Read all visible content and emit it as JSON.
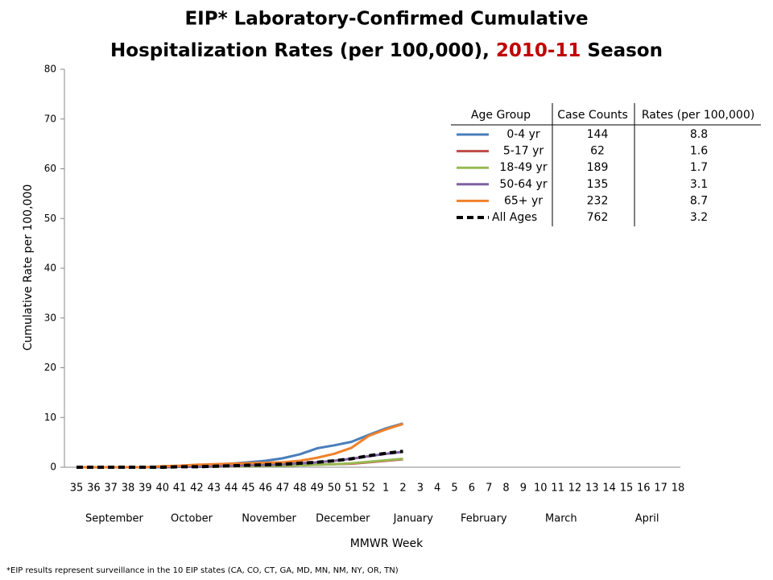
{
  "chart_data": {
    "type": "line",
    "title": {
      "line1": "EIP* Laboratory-Confirmed Cumulative",
      "line2_before": "Hospitalization Rates (per 100,000),",
      "season": "2010-11",
      "line2_after": "Season"
    },
    "season_color": "#c00000",
    "x_label": "MMWR Week",
    "y_label": "Cumulative Rate per 100,000",
    "footnote": "*EIP results represent surveillance in the 10 EIP states (CA, CO, CT, GA, MD, MN, NM, NY, OR, TN)",
    "categories": [
      "35",
      "36",
      "37",
      "38",
      "39",
      "40",
      "41",
      "42",
      "43",
      "44",
      "45",
      "46",
      "47",
      "48",
      "49",
      "50",
      "51",
      "52",
      "1",
      "2",
      "3",
      "4",
      "5",
      "6",
      "7",
      "8",
      "9",
      "10",
      "11",
      "12",
      "13",
      "14",
      "15",
      "16",
      "17",
      "18"
    ],
    "months": [
      "September",
      "October",
      "November",
      "December",
      "January",
      "February",
      "March",
      "April"
    ],
    "ylim": [
      0,
      80
    ],
    "yticks": [
      0,
      10,
      20,
      30,
      40,
      50,
      60,
      70,
      80
    ],
    "table_headers": [
      "Age Group",
      "Case Counts",
      "Rates (per 100,000)"
    ],
    "series": [
      {
        "name": "0-4 yr",
        "color": "#4a7ebb",
        "dashed": false,
        "case_count": 144,
        "rate": 8.8,
        "values": [
          0,
          0,
          0,
          0,
          0,
          0.1,
          0.2,
          0.4,
          0.5,
          0.7,
          1.0,
          1.3,
          1.8,
          2.6,
          3.8,
          4.4,
          5.1,
          6.5,
          7.8,
          8.8,
          null,
          null,
          null,
          null,
          null,
          null,
          null,
          null,
          null,
          null,
          null,
          null,
          null,
          null,
          null,
          null
        ]
      },
      {
        "name": "5-17 yr",
        "color": "#be4b48",
        "dashed": false,
        "case_count": 62,
        "rate": 1.6,
        "values": [
          0,
          0,
          0,
          0,
          0,
          0,
          0.1,
          0.1,
          0.1,
          0.2,
          0.2,
          0.3,
          0.3,
          0.4,
          0.5,
          0.6,
          0.7,
          1.0,
          1.3,
          1.6,
          null,
          null,
          null,
          null,
          null,
          null,
          null,
          null,
          null,
          null,
          null,
          null,
          null,
          null,
          null,
          null
        ]
      },
      {
        "name": "18-49 yr",
        "color": "#98b954",
        "dashed": false,
        "case_count": 189,
        "rate": 1.7,
        "values": [
          0,
          0,
          0,
          0,
          0,
          0,
          0.1,
          0.1,
          0.1,
          0.2,
          0.2,
          0.3,
          0.3,
          0.4,
          0.5,
          0.6,
          0.8,
          1.1,
          1.4,
          1.7,
          null,
          null,
          null,
          null,
          null,
          null,
          null,
          null,
          null,
          null,
          null,
          null,
          null,
          null,
          null,
          null
        ]
      },
      {
        "name": "50-64 yr",
        "color": "#7d60a0",
        "dashed": false,
        "case_count": 135,
        "rate": 3.1,
        "values": [
          0,
          0,
          0,
          0,
          0,
          0,
          0.1,
          0.1,
          0.2,
          0.3,
          0.4,
          0.5,
          0.6,
          0.8,
          1.0,
          1.3,
          1.7,
          2.2,
          2.7,
          3.1,
          null,
          null,
          null,
          null,
          null,
          null,
          null,
          null,
          null,
          null,
          null,
          null,
          null,
          null,
          null,
          null
        ]
      },
      {
        "name": "65+ yr",
        "color": "#f0812a",
        "dashed": false,
        "case_count": 232,
        "rate": 8.7,
        "values": [
          0,
          0,
          0,
          0,
          0,
          0.2,
          0.3,
          0.5,
          0.6,
          0.7,
          0.8,
          0.9,
          1.0,
          1.3,
          1.9,
          2.7,
          3.9,
          6.3,
          7.6,
          8.7,
          null,
          null,
          null,
          null,
          null,
          null,
          null,
          null,
          null,
          null,
          null,
          null,
          null,
          null,
          null,
          null
        ]
      },
      {
        "name": "All Ages",
        "color": "#000000",
        "dashed": true,
        "case_count": 762,
        "rate": 3.2,
        "values": [
          0,
          0,
          0,
          0,
          0,
          0,
          0.1,
          0.1,
          0.2,
          0.3,
          0.4,
          0.5,
          0.6,
          0.8,
          1.0,
          1.3,
          1.7,
          2.3,
          2.8,
          3.2,
          null,
          null,
          null,
          null,
          null,
          null,
          null,
          null,
          null,
          null,
          null,
          null,
          null,
          null,
          null,
          null
        ]
      }
    ]
  }
}
